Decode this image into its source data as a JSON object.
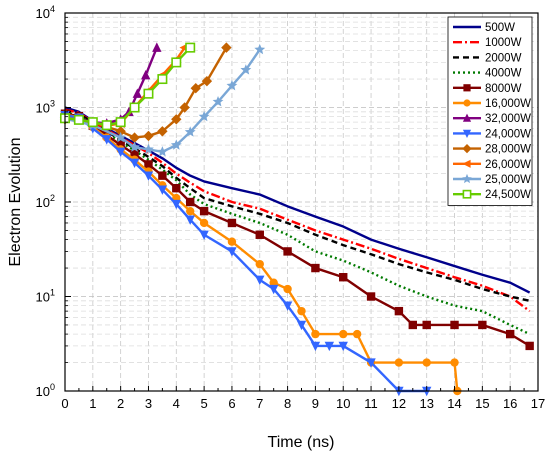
{
  "chart_data": {
    "type": "line",
    "title": "",
    "xlabel": "Time (ns)",
    "ylabel": "Electron Evolution",
    "xlim": [
      0,
      17
    ],
    "ylim": [
      1,
      10000
    ],
    "yscale": "log",
    "x_ticks": [
      "0",
      "1",
      "2",
      "3",
      "4",
      "5",
      "6",
      "7",
      "8",
      "9",
      "10",
      "11",
      "12",
      "13",
      "14",
      "15",
      "16",
      "17"
    ],
    "y_ticks": [
      {
        "base": "10",
        "exp": "0",
        "value": 1
      },
      {
        "base": "10",
        "exp": "1",
        "value": 10
      },
      {
        "base": "10",
        "exp": "2",
        "value": 100
      },
      {
        "base": "10",
        "exp": "3",
        "value": 1000
      },
      {
        "base": "10",
        "exp": "4",
        "value": 10000
      }
    ],
    "grid": true,
    "legend_position": "top-right",
    "series": [
      {
        "name": "500W",
        "color": "#00008b",
        "dash": "",
        "marker": "none",
        "points": [
          [
            0,
            1000
          ],
          [
            0.5,
            900
          ],
          [
            1,
            720
          ],
          [
            1.5,
            600
          ],
          [
            2,
            500
          ],
          [
            2.5,
            420
          ],
          [
            3,
            350
          ],
          [
            3.5,
            290
          ],
          [
            4,
            230
          ],
          [
            4.5,
            190
          ],
          [
            5,
            165
          ],
          [
            6,
            140
          ],
          [
            7,
            120
          ],
          [
            8,
            90
          ],
          [
            9,
            70
          ],
          [
            10,
            55
          ],
          [
            11,
            40
          ],
          [
            12,
            32
          ],
          [
            13,
            26
          ],
          [
            14,
            21
          ],
          [
            15,
            17
          ],
          [
            16,
            14
          ],
          [
            16.7,
            11
          ]
        ]
      },
      {
        "name": "1000W",
        "color": "#ff0000",
        "dash": "9,3,2,3",
        "marker": "none",
        "points": [
          [
            0,
            950
          ],
          [
            0.5,
            880
          ],
          [
            1,
            700
          ],
          [
            1.5,
            580
          ],
          [
            2,
            480
          ],
          [
            2.5,
            400
          ],
          [
            3,
            330
          ],
          [
            3.5,
            260
          ],
          [
            4,
            200
          ],
          [
            4.5,
            160
          ],
          [
            5,
            130
          ],
          [
            6,
            100
          ],
          [
            7,
            85
          ],
          [
            8,
            65
          ],
          [
            9,
            50
          ],
          [
            10,
            40
          ],
          [
            11,
            32
          ],
          [
            12,
            25
          ],
          [
            13,
            20
          ],
          [
            14,
            16
          ],
          [
            15,
            13
          ],
          [
            16,
            10
          ],
          [
            16.7,
            7
          ]
        ]
      },
      {
        "name": "2000W",
        "color": "#000000",
        "dash": "6,4",
        "marker": "none",
        "points": [
          [
            0,
            920
          ],
          [
            0.5,
            860
          ],
          [
            1,
            690
          ],
          [
            1.5,
            560
          ],
          [
            2,
            450
          ],
          [
            2.5,
            370
          ],
          [
            3,
            300
          ],
          [
            3.5,
            240
          ],
          [
            4,
            180
          ],
          [
            4.5,
            140
          ],
          [
            5,
            110
          ],
          [
            6,
            90
          ],
          [
            7,
            75
          ],
          [
            8,
            60
          ],
          [
            9,
            45
          ],
          [
            10,
            35
          ],
          [
            11,
            28
          ],
          [
            12,
            22
          ],
          [
            13,
            18
          ],
          [
            14,
            15
          ],
          [
            15,
            12
          ],
          [
            16,
            10
          ],
          [
            16.7,
            9
          ]
        ]
      },
      {
        "name": "4000W",
        "color": "#007a00",
        "dash": "2,3",
        "marker": "none",
        "points": [
          [
            0,
            880
          ],
          [
            0.5,
            830
          ],
          [
            1,
            660
          ],
          [
            1.5,
            540
          ],
          [
            2,
            430
          ],
          [
            2.5,
            350
          ],
          [
            3,
            280
          ],
          [
            3.5,
            220
          ],
          [
            4,
            170
          ],
          [
            4.5,
            120
          ],
          [
            5,
            95
          ],
          [
            6,
            75
          ],
          [
            7,
            60
          ],
          [
            8,
            45
          ],
          [
            9,
            30
          ],
          [
            10,
            24
          ],
          [
            11,
            18
          ],
          [
            12,
            13
          ],
          [
            13,
            10
          ],
          [
            14,
            8
          ],
          [
            15,
            7
          ],
          [
            16,
            5
          ],
          [
            16.7,
            4
          ]
        ]
      },
      {
        "name": "8000W",
        "color": "#800000",
        "dash": "",
        "marker": "square",
        "points": [
          [
            0,
            860
          ],
          [
            0.5,
            810
          ],
          [
            1,
            640
          ],
          [
            1.5,
            510
          ],
          [
            2,
            400
          ],
          [
            2.5,
            320
          ],
          [
            3,
            250
          ],
          [
            3.5,
            190
          ],
          [
            4,
            140
          ],
          [
            4.5,
            100
          ],
          [
            5,
            80
          ],
          [
            6,
            60
          ],
          [
            7,
            45
          ],
          [
            8,
            30
          ],
          [
            9,
            20
          ],
          [
            10,
            16
          ],
          [
            11,
            10
          ],
          [
            12,
            7
          ],
          [
            12.5,
            5
          ],
          [
            13,
            5
          ],
          [
            14,
            5
          ],
          [
            15,
            5
          ],
          [
            16,
            4
          ],
          [
            16.7,
            3
          ]
        ]
      },
      {
        "name": "16,000W",
        "color": "#ff8c00",
        "dash": "",
        "marker": "circle",
        "points": [
          [
            0,
            840
          ],
          [
            0.5,
            790
          ],
          [
            1,
            620
          ],
          [
            1.5,
            480
          ],
          [
            2,
            360
          ],
          [
            2.5,
            280
          ],
          [
            3,
            210
          ],
          [
            3.5,
            150
          ],
          [
            4,
            110
          ],
          [
            4.5,
            80
          ],
          [
            5,
            60
          ],
          [
            6,
            38
          ],
          [
            7,
            22
          ],
          [
            7.5,
            14
          ],
          [
            8,
            12
          ],
          [
            8.5,
            7
          ],
          [
            9,
            4
          ],
          [
            10,
            4
          ],
          [
            10.5,
            4
          ],
          [
            11,
            2
          ],
          [
            12,
            2
          ],
          [
            13,
            2
          ],
          [
            14,
            2
          ],
          [
            14.1,
            1
          ]
        ]
      },
      {
        "name": "32,000W",
        "color": "#800080",
        "dash": "",
        "marker": "triangle-up",
        "points": [
          [
            0,
            800
          ],
          [
            0.5,
            760
          ],
          [
            1,
            700
          ],
          [
            1.5,
            680
          ],
          [
            2,
            750
          ],
          [
            2.3,
            900
          ],
          [
            2.6,
            1400
          ],
          [
            2.9,
            2200
          ],
          [
            3.3,
            4300
          ]
        ]
      },
      {
        "name": "24,000W",
        "color": "#3366ff",
        "dash": "",
        "marker": "triangle-down",
        "points": [
          [
            0,
            830
          ],
          [
            0.5,
            780
          ],
          [
            1,
            600
          ],
          [
            1.5,
            460
          ],
          [
            2,
            340
          ],
          [
            2.5,
            260
          ],
          [
            3,
            190
          ],
          [
            3.5,
            135
          ],
          [
            4,
            95
          ],
          [
            4.5,
            65
          ],
          [
            5,
            45
          ],
          [
            6,
            30
          ],
          [
            7,
            15
          ],
          [
            7.5,
            12
          ],
          [
            8,
            8
          ],
          [
            8.5,
            5
          ],
          [
            9,
            3
          ],
          [
            9.5,
            3
          ],
          [
            10,
            3
          ],
          [
            11,
            2
          ],
          [
            12,
            1
          ],
          [
            13,
            1
          ]
        ]
      },
      {
        "name": "28,000W",
        "color": "#c46200",
        "dash": "",
        "marker": "diamond",
        "points": [
          [
            0,
            750
          ],
          [
            1,
            700
          ],
          [
            2,
            560
          ],
          [
            2.5,
            480
          ],
          [
            3,
            500
          ],
          [
            3.5,
            560
          ],
          [
            4,
            750
          ],
          [
            4.3,
            1000
          ],
          [
            4.7,
            1600
          ],
          [
            5.1,
            1900
          ],
          [
            5.8,
            4300
          ]
        ]
      },
      {
        "name": "26,000W",
        "color": "#ff6600",
        "dash": "",
        "marker": "triangle-left",
        "points": [
          [
            0,
            780
          ],
          [
            0.5,
            740
          ],
          [
            1,
            700
          ],
          [
            1.5,
            640
          ],
          [
            2,
            680
          ],
          [
            2.5,
            1000
          ],
          [
            3,
            1500
          ],
          [
            3.5,
            2200
          ],
          [
            4,
            3200
          ],
          [
            4.3,
            4300
          ]
        ]
      },
      {
        "name": "25,000W",
        "color": "#7aa7d6",
        "dash": "",
        "marker": "star",
        "points": [
          [
            0,
            760
          ],
          [
            1,
            650
          ],
          [
            2,
            480
          ],
          [
            2.5,
            380
          ],
          [
            3,
            360
          ],
          [
            3.5,
            340
          ],
          [
            4,
            400
          ],
          [
            4.5,
            550
          ],
          [
            5,
            800
          ],
          [
            5.5,
            1150
          ],
          [
            6,
            1700
          ],
          [
            6.5,
            2500
          ],
          [
            7,
            4100
          ]
        ]
      },
      {
        "name": "24,500W",
        "color": "#66cc00",
        "dash": "",
        "marker": "square-open",
        "points": [
          [
            0,
            770
          ],
          [
            0.5,
            740
          ],
          [
            1,
            700
          ],
          [
            1.5,
            650
          ],
          [
            2,
            700
          ],
          [
            2.5,
            1000
          ],
          [
            3,
            1400
          ],
          [
            3.5,
            2000
          ],
          [
            4,
            3000
          ],
          [
            4.5,
            4300
          ]
        ]
      }
    ]
  }
}
